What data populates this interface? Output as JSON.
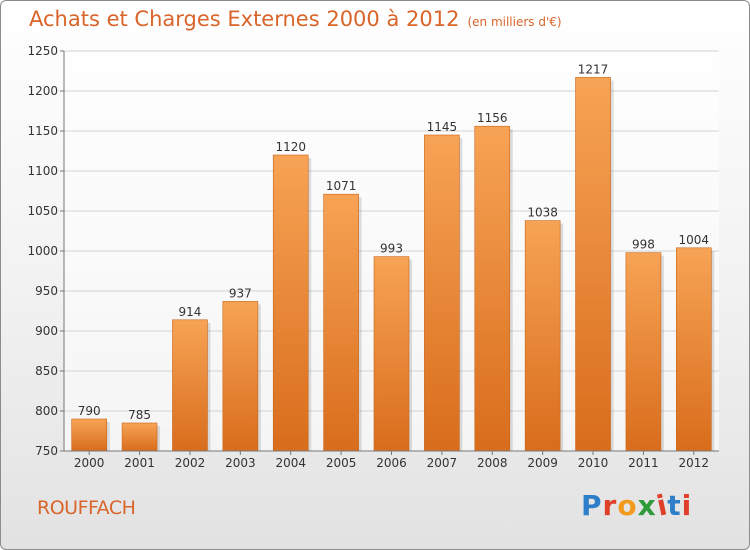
{
  "header": {
    "title": "Achats et Charges Externes 2000 à 2012",
    "subtitle": "(en milliers d'€)"
  },
  "footer": {
    "city": "ROUFFACH",
    "logo": {
      "text": "Proxiti"
    }
  },
  "colors": {
    "accent": "#d9652a",
    "bar_top": "#f7a355",
    "bar_bottom": "#d86d1c",
    "logo_letters": [
      "#2e7ec9",
      "#e0402a",
      "#f29a1d",
      "#2e9a3a",
      "#e0402a",
      "#2e7ec9",
      "#e0402a"
    ]
  },
  "chart_data": {
    "type": "bar",
    "title": "Achats et Charges Externes 2000 à 2012",
    "categories": [
      "2000",
      "2001",
      "2002",
      "2003",
      "2004",
      "2005",
      "2006",
      "2007",
      "2008",
      "2009",
      "2010",
      "2011",
      "2012"
    ],
    "values": [
      790,
      785,
      914,
      937,
      1120,
      1071,
      993,
      1145,
      1156,
      1038,
      1217,
      998,
      1004
    ],
    "ylim": [
      750,
      1250
    ],
    "yticks": [
      750,
      800,
      850,
      900,
      950,
      1000,
      1050,
      1100,
      1150,
      1200,
      1250
    ],
    "grid": true,
    "data_labels": true
  }
}
